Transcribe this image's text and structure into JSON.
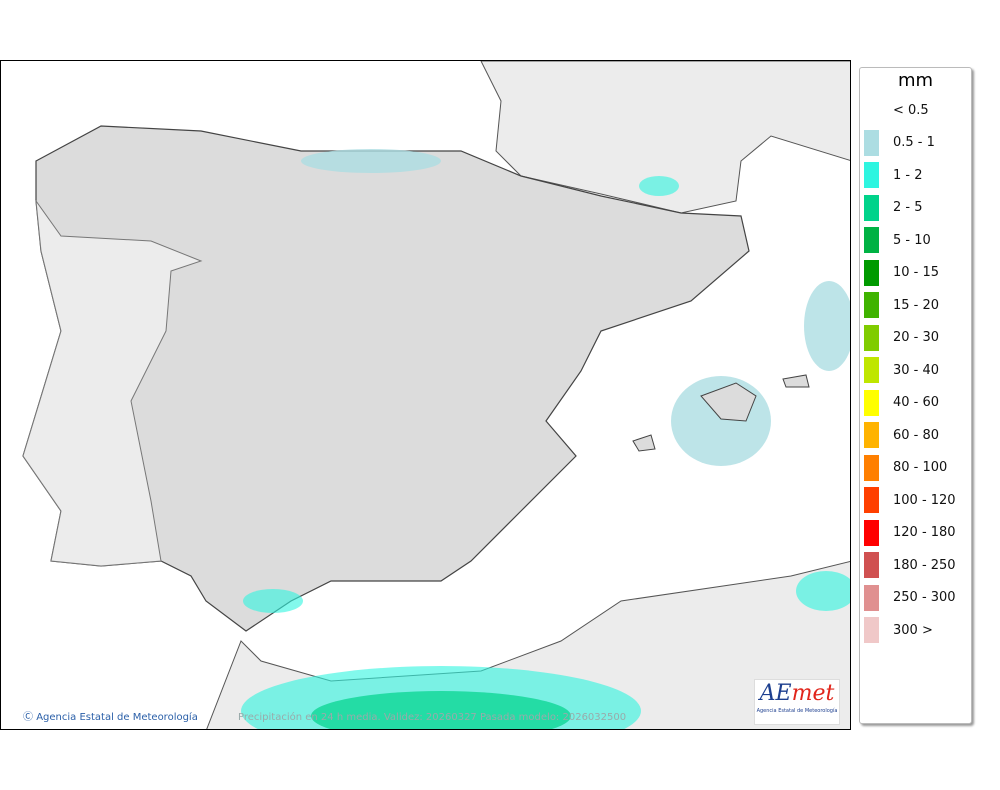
{
  "map": {
    "credit": "Agencia Estatal de Meteorología",
    "caption": "Precipitación en 24 h media. Validez: 20260327 Pasada modelo: 2026032500",
    "logo_text": "AEmet",
    "logo_subtitle": "Agencia Estatal de Meteorología",
    "copyright_icon": "copyright-icon"
  },
  "legend": {
    "unit": "mm",
    "items": [
      {
        "label": "< 0.5",
        "color": "#ffffff"
      },
      {
        "label": "0.5 - 1",
        "color": "#acdde2"
      },
      {
        "label": "1 - 2",
        "color": "#2ef5e0"
      },
      {
        "label": "2 - 5",
        "color": "#00d38a"
      },
      {
        "label": "5 - 10",
        "color": "#00b244"
      },
      {
        "label": "10 - 15",
        "color": "#009a00"
      },
      {
        "label": "15 - 20",
        "color": "#3fb300"
      },
      {
        "label": "20 - 30",
        "color": "#80cc00"
      },
      {
        "label": "30 - 40",
        "color": "#bfe600"
      },
      {
        "label": "40 - 60",
        "color": "#ffff00"
      },
      {
        "label": "60 - 80",
        "color": "#ffb300"
      },
      {
        "label": "80 - 100",
        "color": "#ff7f00"
      },
      {
        "label": "100 - 120",
        "color": "#ff3f00"
      },
      {
        "label": "120 - 180",
        "color": "#ff0000"
      },
      {
        "label": "180 - 250",
        "color": "#d05050"
      },
      {
        "label": "250 - 300",
        "color": "#e09090"
      },
      {
        "label": "300 >",
        "color": "#f0c8c8"
      }
    ]
  }
}
